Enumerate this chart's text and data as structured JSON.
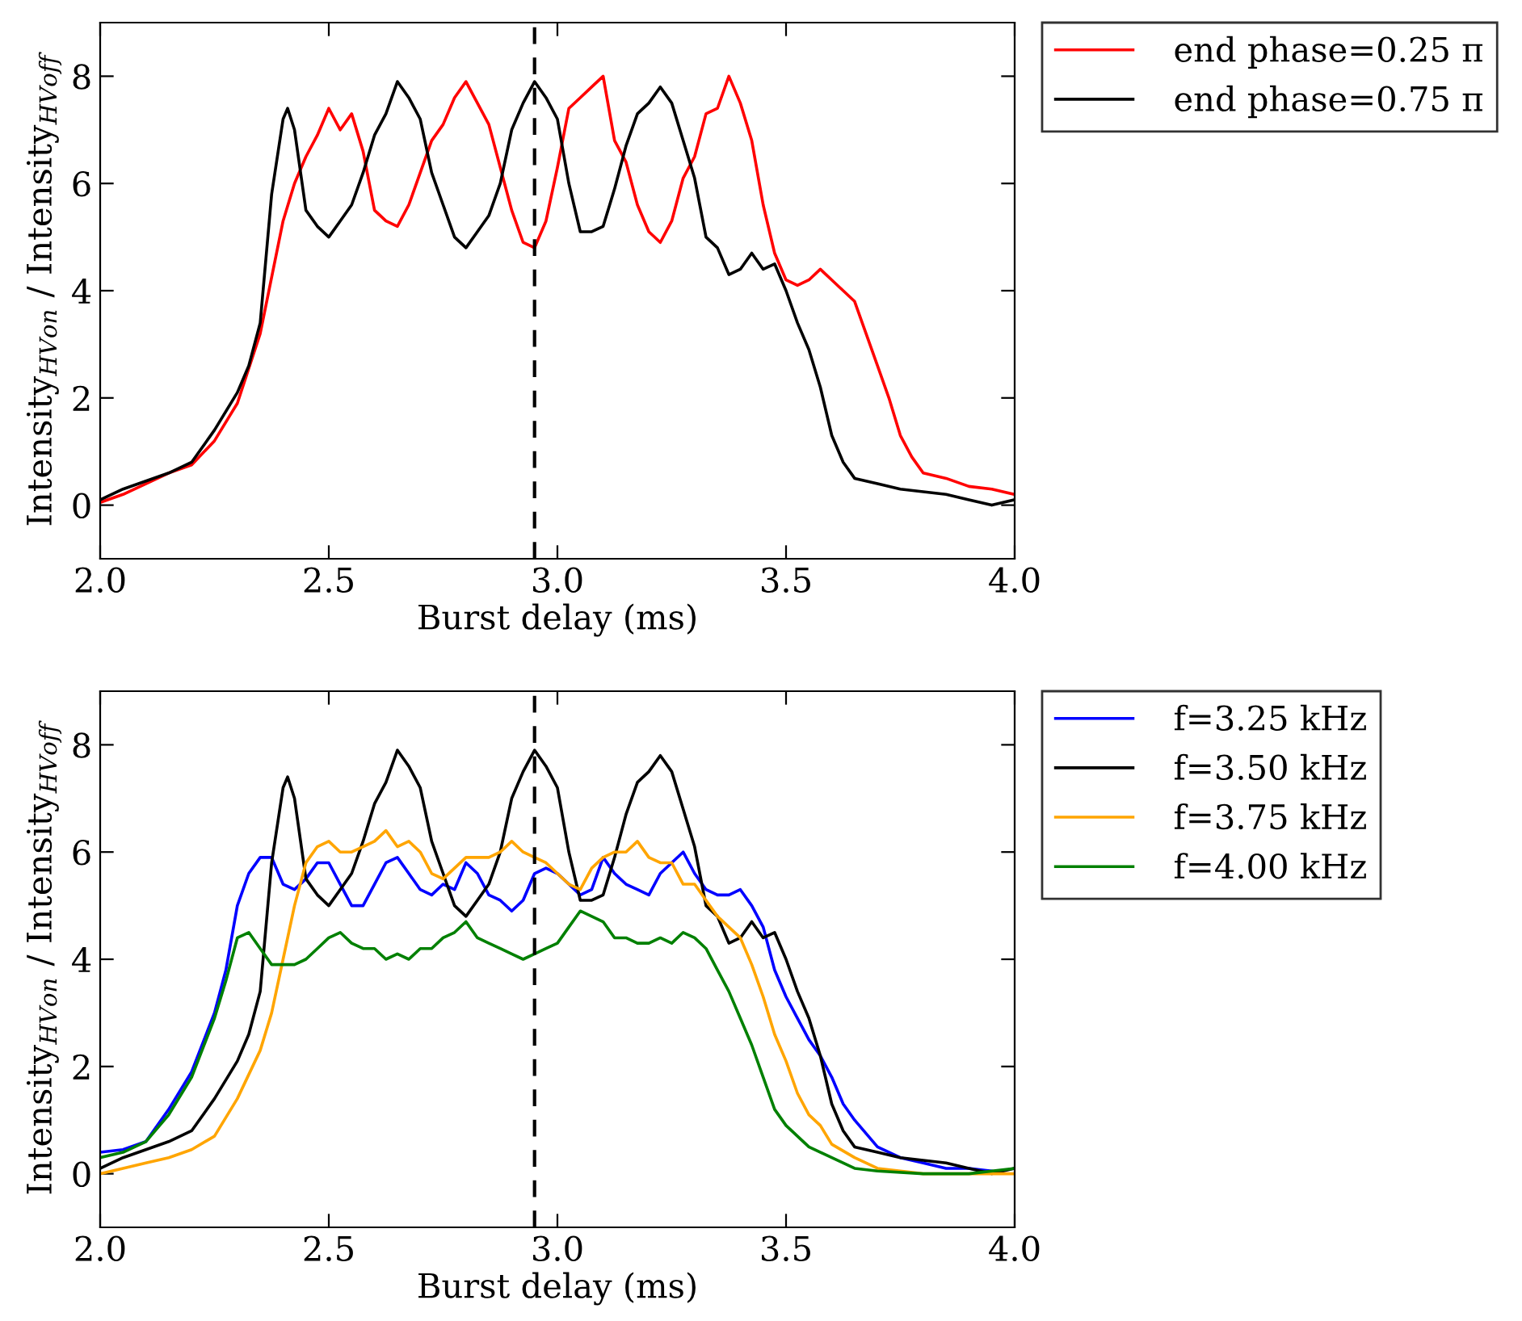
{
  "chart_data": [
    {
      "type": "line",
      "xlabel": "Burst delay (ms)",
      "ylabel": "Intensity$_{HVon}$ / Intensity$_{HVoff}$",
      "xlim": [
        2.0,
        4.0
      ],
      "ylim": [
        -1,
        9
      ],
      "xticks": [
        {
          "value": 2.0,
          "label": "2.0"
        },
        {
          "value": 2.5,
          "label": "2.5"
        },
        {
          "value": 3.0,
          "label": "3.0"
        },
        {
          "value": 3.5,
          "label": "3.5"
        },
        {
          "value": 4.0,
          "label": "4.0"
        }
      ],
      "yticks": [
        0,
        2,
        4,
        6,
        8
      ],
      "grid": false,
      "legend": "right",
      "line_style": "solid",
      "marker": "none",
      "ref_lines": [
        {
          "axis": "x",
          "value": 2.95,
          "color": "#000000",
          "line_style": "dashed"
        }
      ],
      "series": [
        {
          "name": "end phase=0.25 π",
          "color": "#ff0000",
          "x": [
            2.0,
            2.05,
            2.1,
            2.15,
            2.2,
            2.25,
            2.3,
            2.35,
            2.4,
            2.425,
            2.45,
            2.475,
            2.5,
            2.525,
            2.55,
            2.575,
            2.6,
            2.625,
            2.65,
            2.675,
            2.7,
            2.725,
            2.75,
            2.775,
            2.8,
            2.825,
            2.85,
            2.875,
            2.9,
            2.925,
            2.95,
            2.975,
            3.0,
            3.025,
            3.05,
            3.075,
            3.1,
            3.125,
            3.15,
            3.175,
            3.2,
            3.225,
            3.25,
            3.275,
            3.3,
            3.325,
            3.35,
            3.375,
            3.4,
            3.425,
            3.45,
            3.475,
            3.5,
            3.525,
            3.55,
            3.575,
            3.6,
            3.625,
            3.65,
            3.675,
            3.7,
            3.725,
            3.75,
            3.775,
            3.8,
            3.85,
            3.9,
            3.95,
            4.0
          ],
          "values": [
            0.05,
            0.2,
            0.4,
            0.6,
            0.75,
            1.2,
            1.9,
            3.2,
            5.3,
            6.0,
            6.5,
            6.9,
            7.4,
            7.0,
            7.3,
            6.6,
            5.5,
            5.3,
            5.2,
            5.6,
            6.2,
            6.8,
            7.1,
            7.6,
            7.9,
            7.5,
            7.1,
            6.3,
            5.5,
            4.9,
            4.8,
            5.3,
            6.3,
            7.4,
            7.6,
            7.8,
            8.0,
            6.8,
            6.4,
            5.6,
            5.1,
            4.9,
            5.3,
            6.1,
            6.5,
            7.3,
            7.4,
            8.0,
            7.5,
            6.8,
            5.6,
            4.7,
            4.2,
            4.1,
            4.2,
            4.4,
            4.2,
            4.0,
            3.8,
            3.2,
            2.6,
            2.0,
            1.3,
            0.9,
            0.6,
            0.5,
            0.35,
            0.3,
            0.2
          ]
        },
        {
          "name": "end phase=0.75 π",
          "color": "#000000",
          "x": [
            2.0,
            2.05,
            2.1,
            2.15,
            2.2,
            2.25,
            2.3,
            2.325,
            2.35,
            2.375,
            2.4,
            2.41,
            2.425,
            2.45,
            2.475,
            2.5,
            2.525,
            2.55,
            2.575,
            2.6,
            2.625,
            2.65,
            2.675,
            2.7,
            2.725,
            2.75,
            2.775,
            2.8,
            2.825,
            2.85,
            2.875,
            2.9,
            2.925,
            2.95,
            2.975,
            3.0,
            3.025,
            3.05,
            3.075,
            3.1,
            3.125,
            3.15,
            3.175,
            3.2,
            3.225,
            3.25,
            3.275,
            3.3,
            3.325,
            3.35,
            3.375,
            3.4,
            3.425,
            3.45,
            3.475,
            3.5,
            3.525,
            3.55,
            3.575,
            3.6,
            3.625,
            3.65,
            3.7,
            3.75,
            3.8,
            3.85,
            3.9,
            3.95,
            4.0
          ],
          "values": [
            0.1,
            0.3,
            0.45,
            0.6,
            0.8,
            1.4,
            2.1,
            2.6,
            3.4,
            5.8,
            7.2,
            7.4,
            7.0,
            5.5,
            5.2,
            5.0,
            5.3,
            5.6,
            6.2,
            6.9,
            7.3,
            7.9,
            7.6,
            7.2,
            6.2,
            5.6,
            5.0,
            4.8,
            5.1,
            5.4,
            6.0,
            7.0,
            7.5,
            7.9,
            7.6,
            7.2,
            6.0,
            5.1,
            5.1,
            5.2,
            5.9,
            6.7,
            7.3,
            7.5,
            7.8,
            7.5,
            6.8,
            6.1,
            5.0,
            4.8,
            4.3,
            4.4,
            4.7,
            4.4,
            4.5,
            4.0,
            3.4,
            2.9,
            2.2,
            1.3,
            0.8,
            0.5,
            0.4,
            0.3,
            0.25,
            0.2,
            0.1,
            0.0,
            0.1
          ]
        }
      ]
    },
    {
      "type": "line",
      "xlabel": "Burst delay (ms)",
      "ylabel": "Intensity$_{HVon}$ / Intensity$_{HVoff}$",
      "xlim": [
        2.0,
        4.0
      ],
      "ylim": [
        -1,
        9
      ],
      "xticks": [
        {
          "value": 2.0,
          "label": "2.0"
        },
        {
          "value": 2.5,
          "label": "2.5"
        },
        {
          "value": 3.0,
          "label": "3.0"
        },
        {
          "value": 3.5,
          "label": "3.5"
        },
        {
          "value": 4.0,
          "label": "4.0"
        }
      ],
      "yticks": [
        0,
        2,
        4,
        6,
        8
      ],
      "grid": false,
      "legend": "right",
      "line_style": "solid",
      "marker": "none",
      "ref_lines": [
        {
          "axis": "x",
          "value": 2.95,
          "color": "#000000",
          "line_style": "dashed"
        }
      ],
      "series": [
        {
          "name": "f=3.25 kHz",
          "color": "#0000ff",
          "x": [
            2.0,
            2.05,
            2.1,
            2.15,
            2.2,
            2.25,
            2.275,
            2.3,
            2.325,
            2.35,
            2.375,
            2.4,
            2.425,
            2.45,
            2.475,
            2.5,
            2.525,
            2.55,
            2.575,
            2.6,
            2.625,
            2.65,
            2.675,
            2.7,
            2.725,
            2.75,
            2.775,
            2.8,
            2.825,
            2.85,
            2.875,
            2.9,
            2.925,
            2.95,
            2.975,
            3.0,
            3.025,
            3.05,
            3.075,
            3.1,
            3.125,
            3.15,
            3.175,
            3.2,
            3.225,
            3.25,
            3.275,
            3.3,
            3.325,
            3.35,
            3.375,
            3.4,
            3.425,
            3.45,
            3.475,
            3.5,
            3.525,
            3.55,
            3.575,
            3.6,
            3.625,
            3.65,
            3.7,
            3.75,
            3.8,
            3.85,
            3.9,
            3.95
          ],
          "values": [
            0.4,
            0.45,
            0.6,
            1.2,
            1.9,
            3.0,
            3.8,
            5.0,
            5.6,
            5.9,
            5.9,
            5.4,
            5.3,
            5.5,
            5.8,
            5.8,
            5.4,
            5.0,
            5.0,
            5.4,
            5.8,
            5.9,
            5.6,
            5.3,
            5.2,
            5.4,
            5.3,
            5.8,
            5.6,
            5.2,
            5.1,
            4.9,
            5.1,
            5.6,
            5.7,
            5.6,
            5.4,
            5.2,
            5.3,
            5.9,
            5.6,
            5.4,
            5.3,
            5.2,
            5.6,
            5.8,
            6.0,
            5.6,
            5.3,
            5.2,
            5.2,
            5.3,
            5.0,
            4.6,
            3.8,
            3.3,
            2.9,
            2.5,
            2.2,
            1.8,
            1.3,
            1.0,
            0.5,
            0.3,
            0.2,
            0.1,
            0.1,
            0.05
          ]
        },
        {
          "name": "f=3.50 kHz",
          "color": "#000000",
          "x": [
            2.0,
            2.05,
            2.1,
            2.15,
            2.2,
            2.25,
            2.3,
            2.325,
            2.35,
            2.375,
            2.4,
            2.41,
            2.425,
            2.45,
            2.475,
            2.5,
            2.525,
            2.55,
            2.575,
            2.6,
            2.625,
            2.65,
            2.675,
            2.7,
            2.725,
            2.75,
            2.775,
            2.8,
            2.825,
            2.85,
            2.875,
            2.9,
            2.925,
            2.95,
            2.975,
            3.0,
            3.025,
            3.05,
            3.075,
            3.1,
            3.125,
            3.15,
            3.175,
            3.2,
            3.225,
            3.25,
            3.275,
            3.3,
            3.325,
            3.35,
            3.375,
            3.4,
            3.425,
            3.45,
            3.475,
            3.5,
            3.525,
            3.55,
            3.575,
            3.6,
            3.625,
            3.65,
            3.7,
            3.75,
            3.8,
            3.85,
            3.9,
            3.95,
            4.0
          ],
          "values": [
            0.1,
            0.3,
            0.45,
            0.6,
            0.8,
            1.4,
            2.1,
            2.6,
            3.4,
            5.8,
            7.2,
            7.4,
            7.0,
            5.5,
            5.2,
            5.0,
            5.3,
            5.6,
            6.2,
            6.9,
            7.3,
            7.9,
            7.6,
            7.2,
            6.2,
            5.6,
            5.0,
            4.8,
            5.1,
            5.4,
            6.0,
            7.0,
            7.5,
            7.9,
            7.6,
            7.2,
            6.0,
            5.1,
            5.1,
            5.2,
            5.9,
            6.7,
            7.3,
            7.5,
            7.8,
            7.5,
            6.8,
            6.1,
            5.0,
            4.8,
            4.3,
            4.4,
            4.7,
            4.4,
            4.5,
            4.0,
            3.4,
            2.9,
            2.2,
            1.3,
            0.8,
            0.5,
            0.4,
            0.3,
            0.25,
            0.2,
            0.1,
            0.0,
            0.1
          ]
        },
        {
          "name": "f=3.75 kHz",
          "color": "#ffa500",
          "x": [
            2.0,
            2.05,
            2.1,
            2.15,
            2.2,
            2.25,
            2.3,
            2.35,
            2.375,
            2.4,
            2.425,
            2.45,
            2.475,
            2.5,
            2.525,
            2.55,
            2.575,
            2.6,
            2.625,
            2.65,
            2.675,
            2.7,
            2.725,
            2.75,
            2.775,
            2.8,
            2.825,
            2.85,
            2.875,
            2.9,
            2.925,
            2.95,
            2.975,
            3.0,
            3.025,
            3.05,
            3.075,
            3.1,
            3.125,
            3.15,
            3.175,
            3.2,
            3.225,
            3.25,
            3.275,
            3.3,
            3.325,
            3.35,
            3.375,
            3.4,
            3.425,
            3.45,
            3.475,
            3.5,
            3.525,
            3.55,
            3.575,
            3.6,
            3.65,
            3.7,
            3.75,
            3.8,
            3.9,
            4.0
          ],
          "values": [
            0.0,
            0.1,
            0.2,
            0.3,
            0.45,
            0.7,
            1.4,
            2.3,
            3.0,
            4.0,
            5.0,
            5.8,
            6.1,
            6.2,
            6.0,
            6.0,
            6.1,
            6.2,
            6.4,
            6.1,
            6.2,
            6.0,
            5.6,
            5.5,
            5.7,
            5.9,
            5.9,
            5.9,
            6.0,
            6.2,
            6.0,
            5.9,
            5.8,
            5.6,
            5.4,
            5.3,
            5.7,
            5.9,
            6.0,
            6.0,
            6.2,
            5.9,
            5.8,
            5.8,
            5.4,
            5.4,
            5.1,
            4.8,
            4.6,
            4.4,
            3.9,
            3.3,
            2.6,
            2.1,
            1.5,
            1.1,
            0.9,
            0.55,
            0.3,
            0.1,
            0.05,
            0.0,
            0.0,
            0.0
          ]
        },
        {
          "name": "f=4.00 kHz",
          "color": "#008000",
          "x": [
            2.0,
            2.05,
            2.1,
            2.15,
            2.2,
            2.25,
            2.275,
            2.3,
            2.325,
            2.35,
            2.375,
            2.4,
            2.425,
            2.45,
            2.475,
            2.5,
            2.525,
            2.55,
            2.575,
            2.6,
            2.625,
            2.65,
            2.675,
            2.7,
            2.725,
            2.75,
            2.775,
            2.8,
            2.825,
            2.85,
            2.875,
            2.9,
            2.925,
            2.95,
            2.975,
            3.0,
            3.025,
            3.05,
            3.075,
            3.1,
            3.125,
            3.15,
            3.175,
            3.2,
            3.225,
            3.25,
            3.275,
            3.3,
            3.325,
            3.35,
            3.375,
            3.4,
            3.425,
            3.45,
            3.475,
            3.5,
            3.55,
            3.6,
            3.65,
            3.7,
            3.8,
            3.9,
            4.0
          ],
          "values": [
            0.3,
            0.4,
            0.6,
            1.1,
            1.8,
            2.9,
            3.6,
            4.4,
            4.5,
            4.2,
            3.9,
            3.9,
            3.9,
            4.0,
            4.2,
            4.4,
            4.5,
            4.3,
            4.2,
            4.2,
            4.0,
            4.1,
            4.0,
            4.2,
            4.2,
            4.4,
            4.5,
            4.7,
            4.4,
            4.3,
            4.2,
            4.1,
            4.0,
            4.1,
            4.2,
            4.3,
            4.6,
            4.9,
            4.8,
            4.7,
            4.4,
            4.4,
            4.3,
            4.3,
            4.4,
            4.3,
            4.5,
            4.4,
            4.2,
            3.8,
            3.4,
            2.9,
            2.4,
            1.8,
            1.2,
            0.9,
            0.5,
            0.3,
            0.1,
            0.05,
            0.0,
            0.0,
            0.1
          ]
        }
      ]
    }
  ]
}
